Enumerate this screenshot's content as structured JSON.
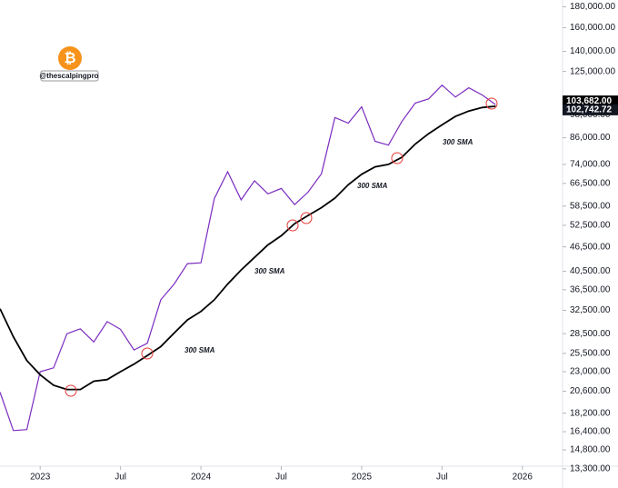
{
  "chart_data": {
    "type": "line",
    "watermark": "@thescalpingpro",
    "log_scale": true,
    "x": [
      "2022-10",
      "2022-11",
      "2022-12",
      "2023-01",
      "2023-02",
      "2023-03",
      "2023-04",
      "2023-05",
      "2023-06",
      "2023-07",
      "2023-08",
      "2023-09",
      "2023-10",
      "2023-11",
      "2023-12",
      "2024-01",
      "2024-02",
      "2024-03",
      "2024-04",
      "2024-05",
      "2024-06",
      "2024-07",
      "2024-08",
      "2024-09",
      "2024-10",
      "2024-11",
      "2024-12",
      "2025-01",
      "2025-02",
      "2025-03",
      "2025-04",
      "2025-05",
      "2025-06",
      "2025-07",
      "2025-08",
      "2025-09",
      "2025-10",
      "2025-11"
    ],
    "series": [
      {
        "name": "BTC",
        "color": "#7b2cbf",
        "values": [
          20500,
          16500,
          16600,
          23000,
          23500,
          28500,
          29300,
          27200,
          30500,
          29200,
          26000,
          27000,
          34500,
          37700,
          42300,
          42500,
          61000,
          71000,
          60600,
          67500,
          62700,
          64600,
          59000,
          63300,
          70200,
          96400,
          93400,
          102400,
          84300,
          82500,
          94200,
          104600,
          107100,
          115700,
          108200,
          114000,
          109500,
          103682
        ],
        "last_label": "103,682.00"
      },
      {
        "name": "300 SMA",
        "color": "#000000",
        "values": [
          32800,
          28000,
          24500,
          22600,
          21300,
          20800,
          20800,
          21800,
          22000,
          23000,
          24000,
          25200,
          26500,
          28600,
          30800,
          32300,
          34500,
          37700,
          40800,
          43800,
          47000,
          49500,
          53000,
          55500,
          58000,
          61200,
          66000,
          70000,
          73000,
          74000,
          77000,
          83000,
          88000,
          92500,
          97000,
          100000,
          102000,
          102742.72
        ],
        "last_label": "102,742.72"
      }
    ],
    "annotations": [
      "300 SMA",
      "300 SMA",
      "300 SMA",
      "300 SMA"
    ],
    "xlim": [
      "2022-10",
      "2026-04"
    ],
    "xticks": [
      {
        "value": "2023-01",
        "label": "2023"
      },
      {
        "value": "2023-07",
        "label": "Jul"
      },
      {
        "value": "2024-01",
        "label": "2024"
      },
      {
        "value": "2024-07",
        "label": "Jul"
      },
      {
        "value": "2025-01",
        "label": "2025"
      },
      {
        "value": "2025-07",
        "label": "Jul"
      },
      {
        "value": "2026-01",
        "label": "2026"
      }
    ],
    "ylim": [
      13500,
      187000
    ],
    "yticks": [
      {
        "value": 180000,
        "label": "180,000.00"
      },
      {
        "value": 160000,
        "label": "160,000.00"
      },
      {
        "value": 140000,
        "label": "140,000.00"
      },
      {
        "value": 125000,
        "label": "125,000.00"
      },
      {
        "value": 98000,
        "label": "98,000.00"
      },
      {
        "value": 86000,
        "label": "86,000.00"
      },
      {
        "value": 74000,
        "label": "74,000.00"
      },
      {
        "value": 66500,
        "label": "66,500.00"
      },
      {
        "value": 58500,
        "label": "58,500.00"
      },
      {
        "value": 52500,
        "label": "52,500.00"
      },
      {
        "value": 46500,
        "label": "46,500.00"
      },
      {
        "value": 40500,
        "label": "40,500.00"
      },
      {
        "value": 36500,
        "label": "36,500.00"
      },
      {
        "value": 32500,
        "label": "32,500.00"
      },
      {
        "value": 28500,
        "label": "28,500.00"
      },
      {
        "value": 25500,
        "label": "25,500.00"
      },
      {
        "value": 23000,
        "label": "23,000.00"
      },
      {
        "value": 20600,
        "label": "20,600.00"
      },
      {
        "value": 18200,
        "label": "18,200.00"
      },
      {
        "value": 16400,
        "label": "16,400.00"
      },
      {
        "value": 14800,
        "label": "14,800.00"
      },
      {
        "value": 13300,
        "label": "13,300.00"
      }
    ]
  }
}
